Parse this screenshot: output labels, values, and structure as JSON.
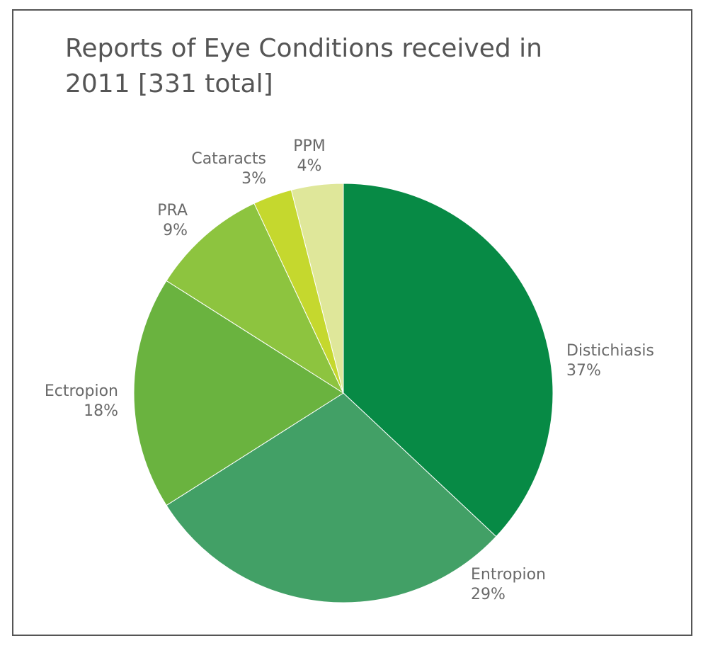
{
  "chart_data": {
    "type": "pie",
    "title": "Reports of Eye Conditions received in 2011 [331 total]",
    "categories": [
      "Distichiasis",
      "Entropion",
      "Ectropion",
      "PRA",
      "Cataracts",
      "PPM"
    ],
    "values": [
      37,
      29,
      18,
      9,
      3,
      4
    ],
    "value_labels": [
      "37%",
      "29%",
      "18%",
      "9%",
      "3%",
      "4%"
    ],
    "colors": [
      "#078a45",
      "#42a066",
      "#6ab33f",
      "#8dc43f",
      "#c5d82e",
      "#dfe79a"
    ]
  }
}
